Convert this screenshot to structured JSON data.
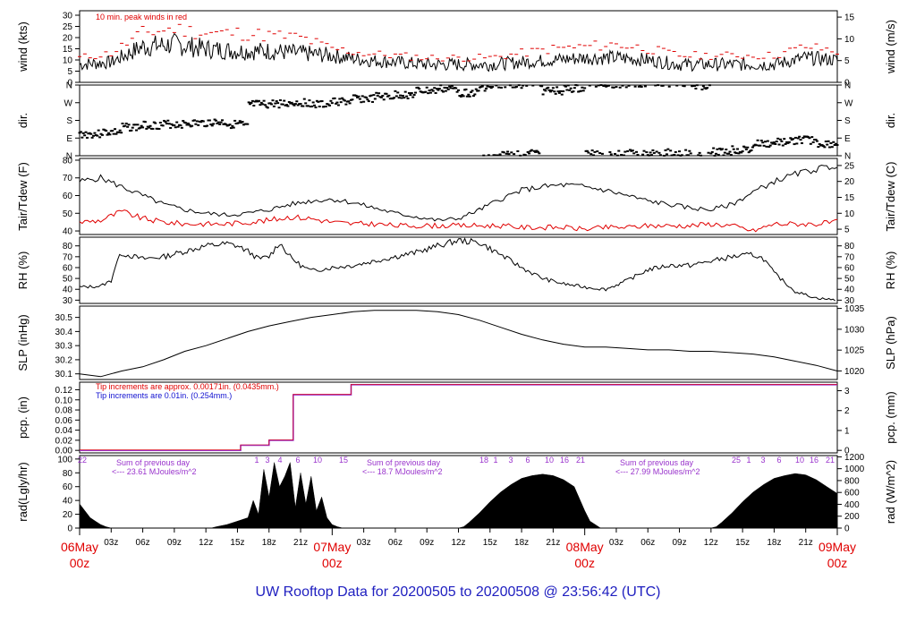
{
  "title": "UW Rooftop Data for 20200505  to  20200508 @ 23:56:42  (UTC)",
  "colors": {
    "black": "#000000",
    "red": "#e00000",
    "blue": "#1010d0",
    "purple": "#9933cc",
    "navy": "#2020c0"
  },
  "chart_data": [
    {
      "type": "line",
      "panel": "wind",
      "ylabel": "wind (kts)",
      "ylabel_right": "wind (m/s)",
      "ylim": [
        0,
        32
      ],
      "yticks": [
        0,
        5,
        10,
        15,
        20,
        25,
        30
      ],
      "yticks_right": [
        0,
        5,
        10,
        15
      ],
      "annotation": "10 min. peak winds in red",
      "x_hours": [
        0,
        3,
        6,
        9,
        12,
        15,
        18,
        21,
        24,
        27,
        30,
        33,
        36,
        39,
        42,
        45,
        48,
        51,
        54,
        57,
        60,
        63,
        66,
        69,
        72
      ],
      "series": [
        {
          "color": "#000000",
          "values": [
            8,
            9,
            16,
            17,
            15,
            14,
            14,
            13,
            12,
            10,
            9,
            8,
            8,
            8,
            9,
            10,
            11,
            11,
            10,
            8,
            8,
            8,
            8,
            11,
            10
          ]
        },
        {
          "color": "#e00000",
          "values": [
            11,
            13,
            22,
            24,
            22,
            22,
            21,
            20,
            15,
            13,
            12,
            11,
            11,
            11,
            13,
            15,
            16,
            17,
            15,
            12,
            12,
            12,
            12,
            16,
            14
          ]
        }
      ]
    },
    {
      "type": "scatter",
      "panel": "dir",
      "ylabel": "dir.",
      "yticks": [
        "N",
        "W",
        "S",
        "E",
        "N"
      ],
      "x_hours": [
        0,
        2,
        4,
        6,
        8,
        10,
        12,
        14,
        15.5,
        16,
        18,
        20,
        22,
        24,
        26,
        28,
        30,
        32,
        34,
        36,
        38,
        40,
        42,
        44,
        46,
        48,
        50,
        52,
        54,
        56,
        58,
        60,
        62,
        64,
        66,
        68,
        70,
        72
      ],
      "values": [
        250,
        240,
        215,
        205,
        200,
        195,
        190,
        200,
        215,
        100,
        95,
        90,
        100,
        85,
        70,
        60,
        50,
        30,
        20,
        40,
        10,
        355,
        350,
        30,
        20,
        350,
        355,
        350,
        345,
        350,
        5,
        340,
        330,
        300,
        290,
        280,
        300,
        320
      ]
    },
    {
      "type": "line",
      "panel": "temp",
      "ylabel": "Tair/Tdew (F)",
      "ylabel_right": "Tair/Tdew (C)",
      "ylim": [
        38,
        81
      ],
      "yticks": [
        40,
        50,
        60,
        70,
        80
      ],
      "yticks_right": [
        5,
        10,
        15,
        20,
        25
      ],
      "x_hours": [
        0,
        2,
        4,
        6,
        8,
        10,
        12,
        14,
        16,
        18,
        20,
        22,
        24,
        26,
        28,
        30,
        32,
        34,
        36,
        38,
        40,
        42,
        44,
        46,
        48,
        50,
        52,
        54,
        56,
        58,
        60,
        62,
        64,
        66,
        68,
        70,
        72
      ],
      "series": [
        {
          "color": "#000000",
          "values": [
            68,
            70,
            65,
            60,
            55,
            52,
            50,
            49,
            50,
            52,
            55,
            57,
            58,
            56,
            53,
            50,
            48,
            46,
            47,
            52,
            58,
            63,
            65,
            66,
            65,
            63,
            60,
            57,
            55,
            53,
            52,
            55,
            62,
            68,
            72,
            75,
            77
          ]
        },
        {
          "color": "#e00000",
          "values": [
            45,
            46,
            51,
            47,
            45,
            44,
            44,
            44,
            45,
            46,
            48,
            47,
            45,
            44,
            44,
            43,
            43,
            43,
            43,
            43,
            43,
            42,
            42,
            42,
            41,
            42,
            42,
            43,
            43,
            43,
            44,
            43,
            40,
            44,
            44,
            44,
            45
          ]
        }
      ]
    },
    {
      "type": "line",
      "panel": "rh",
      "ylabel": "RH (%)",
      "ylabel_right": "RH (%)",
      "ylim": [
        27,
        88
      ],
      "yticks": [
        30,
        40,
        50,
        60,
        70,
        80
      ],
      "x_hours": [
        0,
        2,
        3,
        3.5,
        4,
        6,
        8,
        10,
        12,
        14,
        15,
        16,
        17,
        18,
        19,
        20,
        21,
        22,
        24,
        26,
        28,
        30,
        32,
        34,
        36,
        38,
        40,
        42,
        44,
        46,
        48,
        50,
        52,
        54,
        56,
        58,
        60,
        62,
        64,
        65,
        66,
        68,
        70,
        72
      ],
      "values": [
        42,
        43,
        48,
        65,
        73,
        68,
        70,
        75,
        80,
        82,
        80,
        75,
        68,
        70,
        83,
        70,
        62,
        57,
        60,
        62,
        66,
        70,
        74,
        80,
        85,
        83,
        72,
        60,
        50,
        45,
        42,
        40,
        48,
        58,
        62,
        62,
        66,
        70,
        72,
        68,
        55,
        38,
        32,
        30
      ]
    },
    {
      "type": "line",
      "panel": "slp",
      "ylabel": "SLP (inHg)",
      "ylabel_right": "SLP (hPa)",
      "ylim": [
        30.06,
        30.58
      ],
      "yticks": [
        30.1,
        30.2,
        30.3,
        30.4,
        30.5
      ],
      "yticks_hpa": [
        1020,
        1025,
        1030,
        1035
      ],
      "x_hours": [
        0,
        2,
        4,
        6,
        8,
        10,
        12,
        14,
        16,
        18,
        20,
        22,
        24,
        26,
        28,
        30,
        32,
        34,
        36,
        38,
        40,
        42,
        44,
        46,
        48,
        50,
        52,
        54,
        56,
        58,
        60,
        62,
        64,
        66,
        68,
        70,
        72
      ],
      "values": [
        30.1,
        30.08,
        30.12,
        30.15,
        30.2,
        30.26,
        30.3,
        30.35,
        30.4,
        30.44,
        30.47,
        30.5,
        30.52,
        30.54,
        30.55,
        30.55,
        30.55,
        30.54,
        30.52,
        30.48,
        30.43,
        30.38,
        30.34,
        30.31,
        30.29,
        30.29,
        30.28,
        30.27,
        30.27,
        30.26,
        30.26,
        30.25,
        30.24,
        30.22,
        30.19,
        30.16,
        30.12
      ]
    },
    {
      "type": "line",
      "panel": "pcp",
      "ylabel": "pcp. (in)",
      "ylabel_right": "pcp. (mm)",
      "ylim": [
        -0.005,
        0.135
      ],
      "yticks": [
        0,
        0.02,
        0.04,
        0.06,
        0.08,
        0.1,
        0.12
      ],
      "yticks_right": [
        0,
        1,
        2,
        3
      ],
      "annotation_red": "Tip increments are approx. 0.00171in. (0.0435mm.)",
      "annotation_blue": "Tip increments are 0.01in. (0.254mm.)",
      "x_hours": [
        0,
        15.3,
        15.3,
        18,
        18,
        20.3,
        20.3,
        25.8,
        25.8,
        72
      ],
      "values": [
        0,
        0,
        0.01,
        0.01,
        0.02,
        0.02,
        0.11,
        0.11,
        0.13,
        0.13
      ]
    },
    {
      "type": "area",
      "panel": "rad",
      "ylabel": "rad(Lgly/hr)",
      "ylabel_right": "rad (W/m^2)",
      "ylim": [
        0,
        105
      ],
      "yticks": [
        0,
        20,
        40,
        60,
        80,
        100
      ],
      "yticks_right": [
        0,
        200,
        400,
        600,
        800,
        1000,
        1200
      ],
      "day_summaries": [
        "Sum of previous day",
        "<--- 23.61 MJoules/m^2",
        "Sum of previous day",
        "<--- 18.7 MJoules/m^2",
        "Sum of previous day",
        "<--- 27.99 MJoules/m^2"
      ],
      "hour_marks": [
        "22",
        "1",
        "3",
        "4",
        "6",
        "10",
        "15",
        "18",
        "1",
        "3",
        "6",
        "10",
        "16",
        "21",
        "25",
        "1",
        "3",
        "6",
        "10",
        "16",
        "21",
        "25"
      ],
      "x_hours": [
        0,
        0.5,
        1,
        1.5,
        2,
        2.5,
        3,
        12,
        12.5,
        13,
        14,
        15,
        16,
        16.5,
        17,
        17.5,
        18,
        18.5,
        19,
        19.5,
        20,
        20.5,
        21,
        21.5,
        22,
        22.5,
        23,
        23.5,
        24,
        24.5,
        25,
        36,
        36.5,
        37,
        38,
        39,
        40,
        41,
        42,
        43,
        44,
        45,
        46,
        47,
        48,
        48.5,
        49,
        49.5,
        60,
        60.5,
        61,
        62,
        63,
        64,
        65,
        66,
        67,
        68,
        69,
        70,
        71,
        72
      ],
      "values": [
        35,
        25,
        15,
        10,
        5,
        2,
        0,
        0,
        0,
        2,
        5,
        10,
        15,
        40,
        20,
        85,
        45,
        95,
        60,
        75,
        95,
        30,
        80,
        35,
        75,
        25,
        45,
        15,
        5,
        2,
        0,
        0,
        2,
        8,
        22,
        38,
        52,
        63,
        72,
        76,
        78,
        76,
        70,
        60,
        25,
        10,
        5,
        0,
        0,
        2,
        8,
        22,
        38,
        52,
        63,
        72,
        76,
        79,
        77,
        70,
        60,
        50
      ]
    }
  ],
  "x_axis": {
    "tick_labels": [
      "03z",
      "06z",
      "09z",
      "12z",
      "15z",
      "18z",
      "21z",
      "03z",
      "06z",
      "09z",
      "12z",
      "15z",
      "18z",
      "21z",
      "03z",
      "06z",
      "09z",
      "12z",
      "15z",
      "18z",
      "21z"
    ],
    "tick_hours": [
      3,
      6,
      9,
      12,
      15,
      18,
      21,
      27,
      30,
      33,
      36,
      39,
      42,
      45,
      51,
      54,
      57,
      60,
      63,
      66,
      69
    ],
    "day_labels": [
      {
        "hour": 0,
        "date": "06May",
        "time": "00z"
      },
      {
        "hour": 24,
        "date": "07May",
        "time": "00z"
      },
      {
        "hour": 48,
        "date": "08May",
        "time": "00z"
      },
      {
        "hour": 72,
        "date": "09May",
        "time": "00z"
      }
    ]
  }
}
